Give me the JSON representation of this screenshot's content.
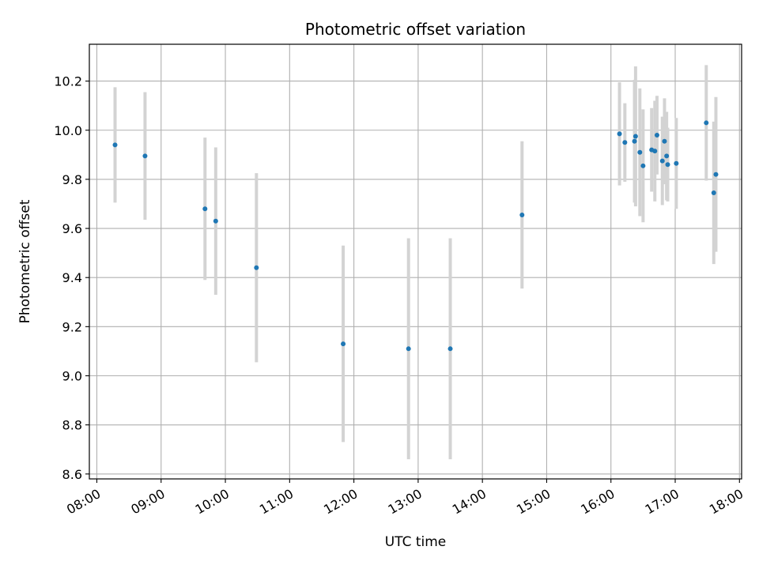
{
  "chart_data": {
    "type": "scatter",
    "title": "Photometric offset variation",
    "xlabel": "UTC time",
    "ylabel": "Photometric offset",
    "x_axis": "time",
    "xlim": [
      "07:53",
      "18:02"
    ],
    "ylim": [
      8.58,
      10.35
    ],
    "xticks": [
      "08:00",
      "09:00",
      "10:00",
      "11:00",
      "12:00",
      "13:00",
      "14:00",
      "15:00",
      "16:00",
      "17:00",
      "18:00"
    ],
    "yticks": [
      "8.6",
      "8.8",
      "9.0",
      "9.2",
      "9.4",
      "9.6",
      "9.8",
      "10.0",
      "10.2"
    ],
    "grid": true,
    "colors": {
      "points": "#1f77b4",
      "error_bars": "#d3d3d3",
      "grid": "#b0b0b0"
    },
    "points": [
      {
        "time": "08:17",
        "y": 9.94,
        "err": 0.235
      },
      {
        "time": "08:45",
        "y": 9.895,
        "err": 0.26
      },
      {
        "time": "09:41",
        "y": 9.68,
        "err": 0.29
      },
      {
        "time": "09:51",
        "y": 9.63,
        "err": 0.3
      },
      {
        "time": "10:29",
        "y": 9.44,
        "err": 0.385
      },
      {
        "time": "11:50",
        "y": 9.13,
        "err": 0.4
      },
      {
        "time": "12:51",
        "y": 9.11,
        "err": 0.45
      },
      {
        "time": "13:30",
        "y": 9.11,
        "err": 0.45
      },
      {
        "time": "14:37",
        "y": 9.655,
        "err": 0.3
      },
      {
        "time": "16:08",
        "y": 9.985,
        "err": 0.21
      },
      {
        "time": "16:13",
        "y": 9.95,
        "err": 0.16
      },
      {
        "time": "16:22",
        "y": 9.955,
        "err": 0.25
      },
      {
        "time": "16:23",
        "y": 9.975,
        "err": 0.285
      },
      {
        "time": "16:27",
        "y": 9.91,
        "err": 0.26
      },
      {
        "time": "16:30",
        "y": 9.855,
        "err": 0.23
      },
      {
        "time": "16:38",
        "y": 9.92,
        "err": 0.17
      },
      {
        "time": "16:41",
        "y": 9.915,
        "err": 0.205
      },
      {
        "time": "16:43",
        "y": 9.98,
        "err": 0.16
      },
      {
        "time": "16:48",
        "y": 9.875,
        "err": 0.18
      },
      {
        "time": "16:50",
        "y": 9.955,
        "err": 0.175
      },
      {
        "time": "16:52",
        "y": 9.895,
        "err": 0.18
      },
      {
        "time": "16:53",
        "y": 9.86,
        "err": 0.15
      },
      {
        "time": "17:01",
        "y": 9.865,
        "err": 0.185
      },
      {
        "time": "17:29",
        "y": 10.03,
        "err": 0.235
      },
      {
        "time": "17:36",
        "y": 9.745,
        "err": 0.29
      },
      {
        "time": "17:38",
        "y": 9.82,
        "err": 0.315
      }
    ]
  }
}
